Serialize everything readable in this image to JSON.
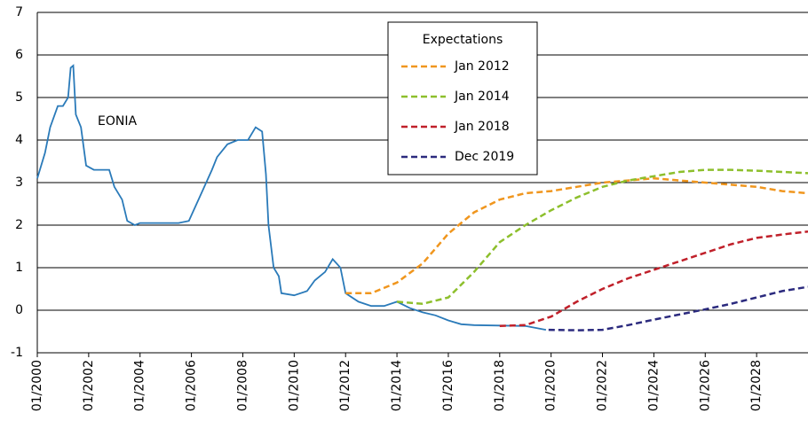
{
  "chart_data": {
    "type": "line",
    "legend_title": "Expectations",
    "annotation": "EONIA",
    "xlim": [
      2000,
      2030
    ],
    "xticks": [
      {
        "value": 2000,
        "label": "01/2000"
      },
      {
        "value": 2002,
        "label": "01/2002"
      },
      {
        "value": 2004,
        "label": "01/2004"
      },
      {
        "value": 2006,
        "label": "01/2006"
      },
      {
        "value": 2008,
        "label": "01/2008"
      },
      {
        "value": 2010,
        "label": "01/2010"
      },
      {
        "value": 2012,
        "label": "01/2012"
      },
      {
        "value": 2014,
        "label": "01/2014"
      },
      {
        "value": 2016,
        "label": "01/2016"
      },
      {
        "value": 2018,
        "label": "01/2018"
      },
      {
        "value": 2020,
        "label": "01/2020"
      },
      {
        "value": 2022,
        "label": "01/2022"
      },
      {
        "value": 2024,
        "label": "01/2024"
      },
      {
        "value": 2026,
        "label": "01/2026"
      },
      {
        "value": 2028,
        "label": "01/2028"
      }
    ],
    "ylim": [
      -1,
      7
    ],
    "yticks": [
      -1,
      0,
      1,
      2,
      3,
      4,
      5,
      6,
      7
    ],
    "grid": true,
    "series": [
      {
        "name": "EONIA",
        "color": "#2a7ab9",
        "dash": false,
        "legend": false,
        "x": [
          2000.0,
          2000.3,
          2000.5,
          2000.8,
          2001.0,
          2001.2,
          2001.3,
          2001.4,
          2001.5,
          2001.7,
          2001.9,
          2002.2,
          2002.5,
          2002.8,
          2003.0,
          2003.3,
          2003.5,
          2003.8,
          2004.0,
          2004.5,
          2005.0,
          2005.5,
          2005.9,
          2006.2,
          2006.5,
          2006.8,
          2007.0,
          2007.4,
          2007.8,
          2008.2,
          2008.5,
          2008.75,
          2008.9,
          2009.0,
          2009.2,
          2009.4,
          2009.5,
          2010.0,
          2010.5,
          2010.8,
          2011.2,
          2011.5,
          2011.8,
          2012.0,
          2012.5,
          2013.0,
          2013.5,
          2014.0,
          2014.5,
          2015.0,
          2015.5,
          2016.0,
          2016.5,
          2017.0,
          2018.0,
          2019.0,
          2019.8
        ],
        "values": [
          3.1,
          3.7,
          4.3,
          4.8,
          4.8,
          5.0,
          5.7,
          5.75,
          4.6,
          4.3,
          3.4,
          3.3,
          3.3,
          3.3,
          2.9,
          2.6,
          2.1,
          2.0,
          2.05,
          2.05,
          2.05,
          2.05,
          2.1,
          2.5,
          2.9,
          3.3,
          3.6,
          3.9,
          4.0,
          4.0,
          4.3,
          4.2,
          3.2,
          2.0,
          1.0,
          0.8,
          0.4,
          0.35,
          0.45,
          0.7,
          0.9,
          1.2,
          1.0,
          0.4,
          0.2,
          0.1,
          0.1,
          0.2,
          0.05,
          -0.05,
          -0.12,
          -0.24,
          -0.33,
          -0.35,
          -0.36,
          -0.37,
          -0.46
        ]
      },
      {
        "name": "Jan 2012",
        "color": "#f0961e",
        "dash": true,
        "legend": true,
        "x": [
          2012,
          2013,
          2014,
          2015,
          2016,
          2017,
          2018,
          2019,
          2020,
          2021,
          2022,
          2023,
          2024,
          2025,
          2026,
          2027,
          2028,
          2029,
          2030
        ],
        "values": [
          0.4,
          0.4,
          0.65,
          1.1,
          1.8,
          2.3,
          2.6,
          2.75,
          2.8,
          2.9,
          3.0,
          3.05,
          3.1,
          3.05,
          3.0,
          2.95,
          2.9,
          2.8,
          2.75
        ]
      },
      {
        "name": "Jan 2014",
        "color": "#8dbf2c",
        "dash": true,
        "legend": true,
        "x": [
          2014,
          2015,
          2016,
          2017,
          2018,
          2019,
          2020,
          2021,
          2022,
          2023,
          2024,
          2025,
          2026,
          2027,
          2028,
          2029,
          2030
        ],
        "values": [
          0.2,
          0.15,
          0.3,
          0.9,
          1.6,
          2.0,
          2.35,
          2.65,
          2.9,
          3.05,
          3.15,
          3.25,
          3.3,
          3.3,
          3.28,
          3.25,
          3.22
        ]
      },
      {
        "name": "Jan 2018",
        "color": "#c0202a",
        "dash": true,
        "legend": true,
        "x": [
          2018,
          2019,
          2020,
          2021,
          2022,
          2023,
          2024,
          2025,
          2026,
          2027,
          2028,
          2029,
          2030
        ],
        "values": [
          -0.37,
          -0.35,
          -0.15,
          0.2,
          0.5,
          0.75,
          0.95,
          1.15,
          1.35,
          1.55,
          1.7,
          1.78,
          1.85
        ]
      },
      {
        "name": "Dec 2019",
        "color": "#2b2a7e",
        "dash": true,
        "legend": true,
        "x": [
          2019.9,
          2021,
          2022,
          2023,
          2024,
          2025,
          2026,
          2027,
          2028,
          2029,
          2030
        ],
        "values": [
          -0.46,
          -0.47,
          -0.46,
          -0.35,
          -0.22,
          -0.1,
          0.02,
          0.15,
          0.3,
          0.45,
          0.55
        ]
      }
    ]
  }
}
